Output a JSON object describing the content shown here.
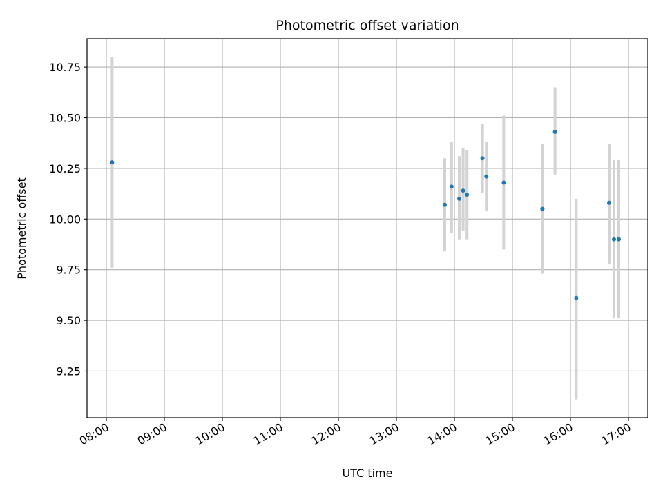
{
  "chart_data": {
    "type": "scatter",
    "title": "Photometric offset variation",
    "xlabel": "UTC time",
    "ylabel": "Photometric offset",
    "x_ticks": [
      "08:00",
      "09:00",
      "10:00",
      "11:00",
      "12:00",
      "13:00",
      "14:00",
      "15:00",
      "16:00",
      "17:00"
    ],
    "y_ticks": [
      "9.25",
      "9.50",
      "9.75",
      "10.00",
      "10.25",
      "10.50",
      "10.75"
    ],
    "xlim": [
      "07:40",
      "17:20"
    ],
    "ylim": [
      9.02,
      10.89
    ],
    "grid": true,
    "marker_color": "#1f77b4",
    "errorbar_color": "#d3d3d3",
    "points": [
      {
        "x": "08:06",
        "y": 10.28,
        "err_low": 9.76,
        "err_high": 10.8
      },
      {
        "x": "13:50",
        "y": 10.07,
        "err_low": 9.84,
        "err_high": 10.3
      },
      {
        "x": "13:57",
        "y": 10.16,
        "err_low": 9.93,
        "err_high": 10.38
      },
      {
        "x": "14:05",
        "y": 10.1,
        "err_low": 9.9,
        "err_high": 10.31
      },
      {
        "x": "14:09",
        "y": 10.14,
        "err_low": 9.94,
        "err_high": 10.35
      },
      {
        "x": "14:13",
        "y": 10.12,
        "err_low": 9.9,
        "err_high": 10.34
      },
      {
        "x": "14:29",
        "y": 10.3,
        "err_low": 10.13,
        "err_high": 10.47
      },
      {
        "x": "14:33",
        "y": 10.21,
        "err_low": 10.04,
        "err_high": 10.38
      },
      {
        "x": "14:51",
        "y": 10.18,
        "err_low": 9.85,
        "err_high": 10.51
      },
      {
        "x": "15:31",
        "y": 10.05,
        "err_low": 9.73,
        "err_high": 10.37
      },
      {
        "x": "15:44",
        "y": 10.43,
        "err_low": 10.22,
        "err_high": 10.65
      },
      {
        "x": "16:06",
        "y": 9.61,
        "err_low": 9.11,
        "err_high": 10.1
      },
      {
        "x": "16:40",
        "y": 10.08,
        "err_low": 9.78,
        "err_high": 10.37
      },
      {
        "x": "16:45",
        "y": 9.9,
        "err_low": 9.51,
        "err_high": 10.29
      },
      {
        "x": "16:50",
        "y": 9.9,
        "err_low": 9.51,
        "err_high": 10.29
      }
    ]
  }
}
